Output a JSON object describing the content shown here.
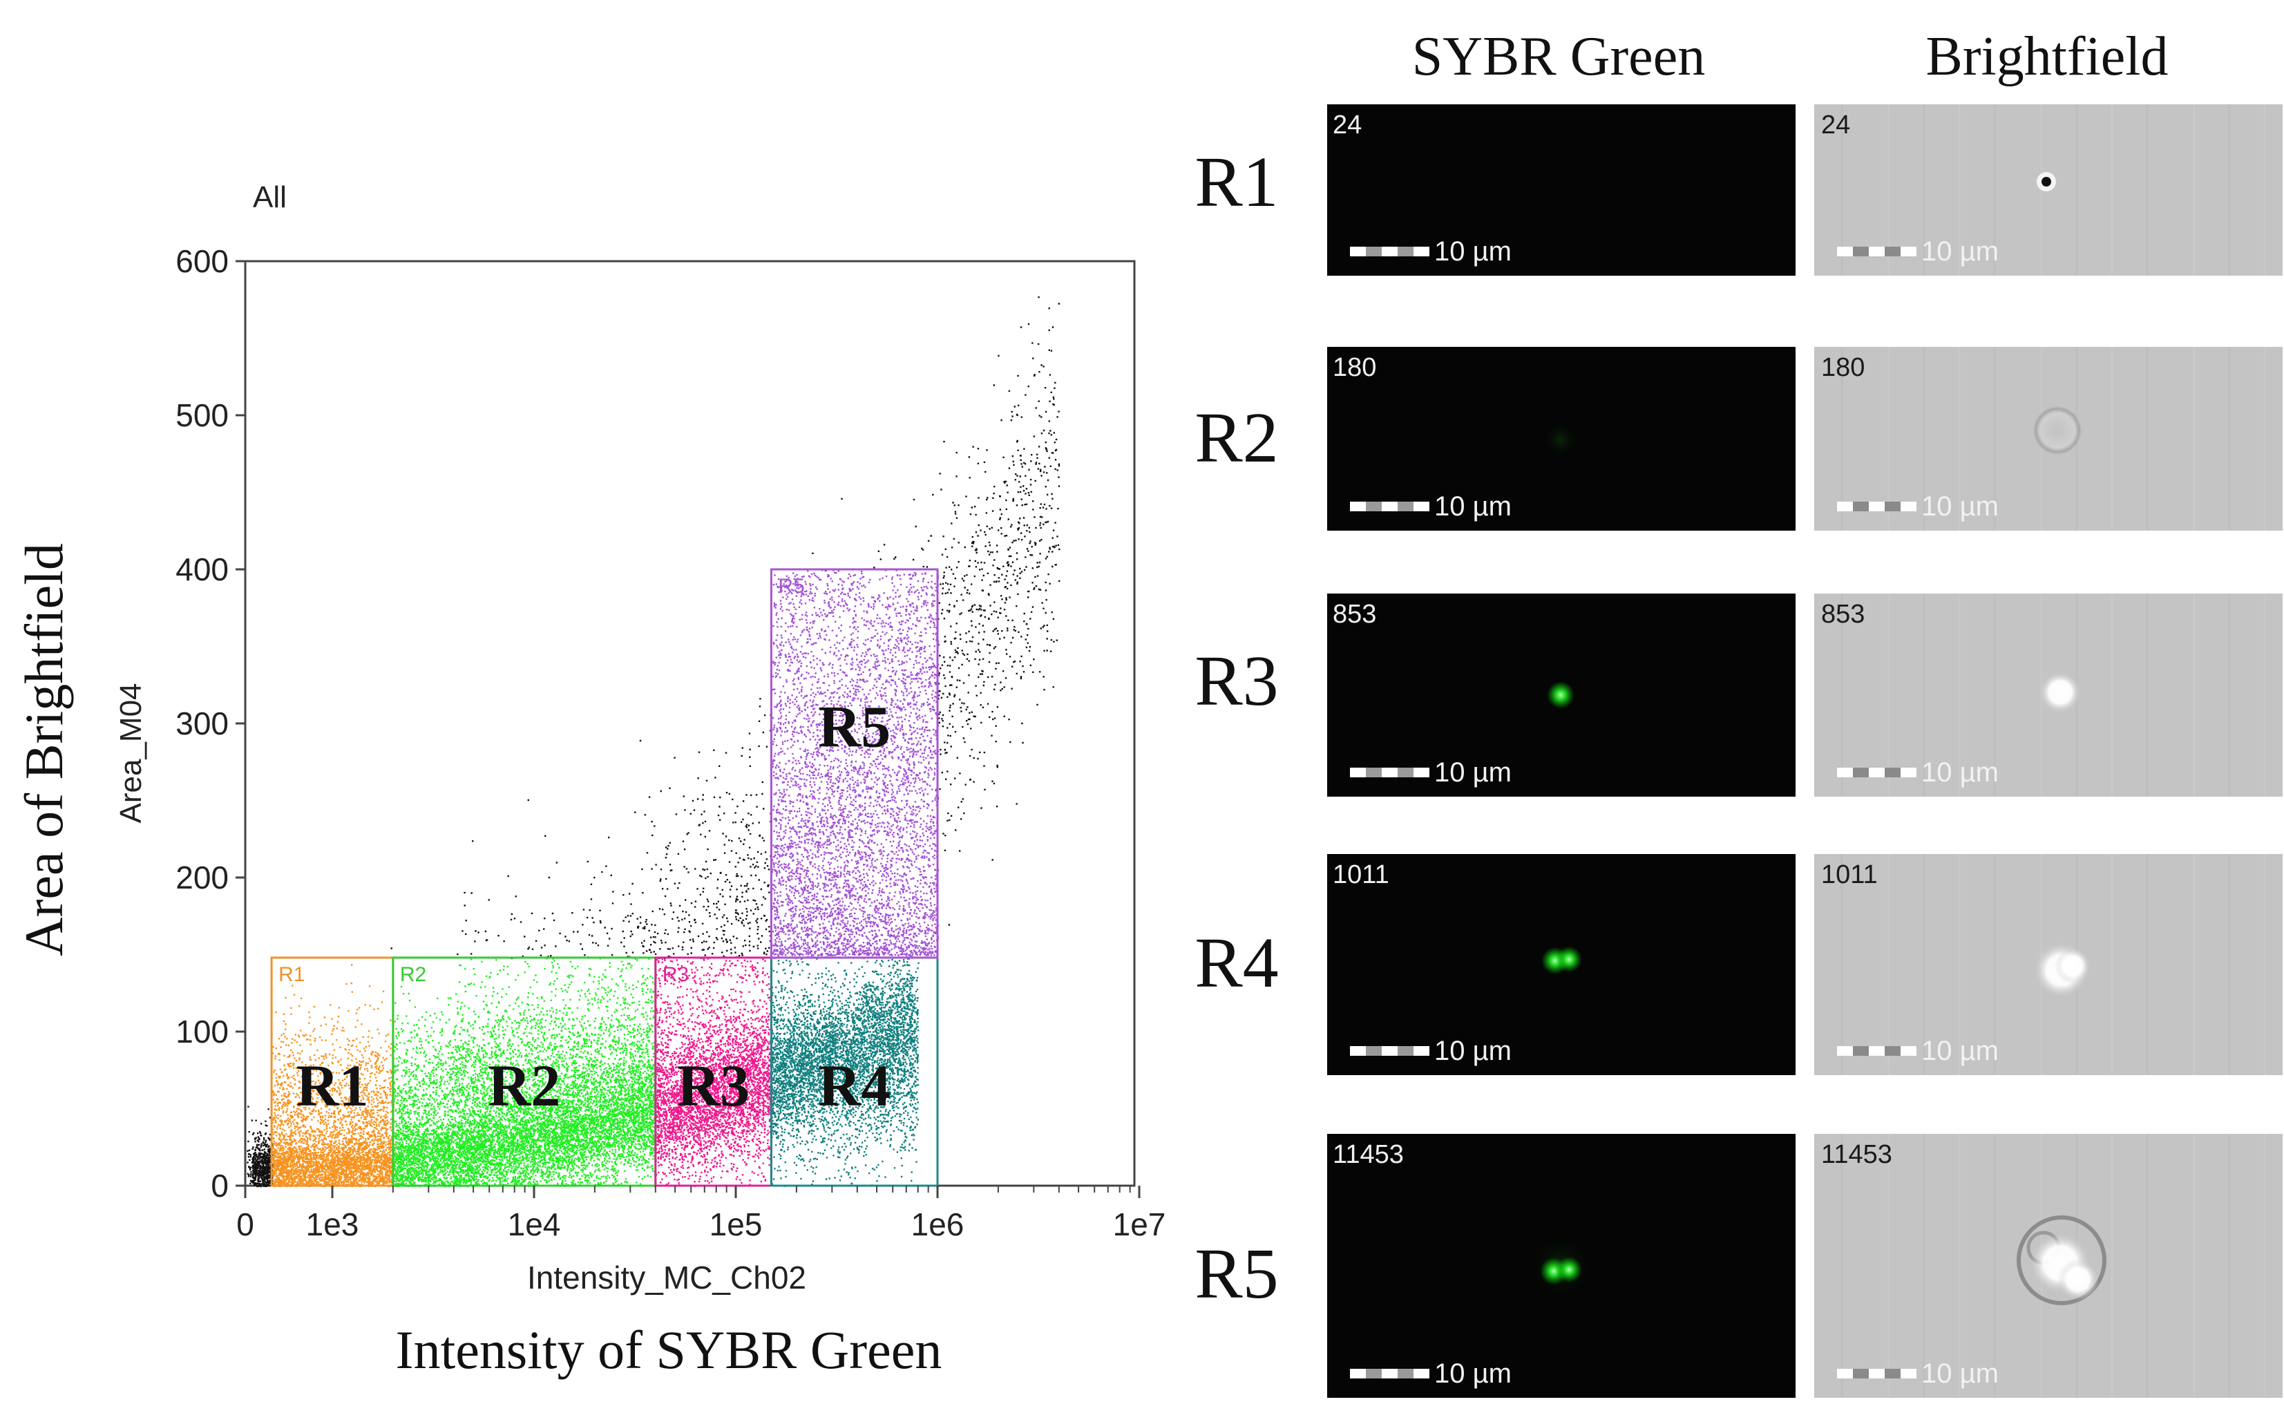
{
  "plot": {
    "gate_label": "All",
    "ylabel_inner": "Area_M04",
    "xlabel_inner": "Intensity_MC_Ch02",
    "ylabel_outer": "Area of Brightfield",
    "xlabel_outer": "Intensity of SYBR Green"
  },
  "chart_data": {
    "type": "scatter",
    "x_scale": "log",
    "xlim": [
      0,
      10000000
    ],
    "ylim": [
      0,
      600
    ],
    "x_ticks": [
      {
        "value": 0,
        "label": "0"
      },
      {
        "value": 1000,
        "label": "1e3"
      },
      {
        "value": 10000,
        "label": "1e4"
      },
      {
        "value": 100000,
        "label": "1e5"
      },
      {
        "value": 1000000,
        "label": "1e6"
      },
      {
        "value": 10000000,
        "label": "1e7"
      }
    ],
    "y_ticks": [
      {
        "value": 0,
        "label": "0"
      },
      {
        "value": 100,
        "label": "100"
      },
      {
        "value": 200,
        "label": "200"
      },
      {
        "value": 300,
        "label": "300"
      },
      {
        "value": 400,
        "label": "400"
      },
      {
        "value": 500,
        "label": "500"
      },
      {
        "value": 600,
        "label": "600"
      }
    ],
    "regions": [
      {
        "id": "R1",
        "small_label": "R1",
        "big_label": "R1",
        "color": "#f0922a",
        "point_color": "#f7931e",
        "x_range": [
          500,
          2000
        ],
        "y_range": [
          0,
          148
        ]
      },
      {
        "id": "R2",
        "small_label": "R2",
        "big_label": "R2",
        "color": "#33cc33",
        "point_color": "#22ee22",
        "x_range": [
          2000,
          40000
        ],
        "y_range": [
          0,
          148
        ]
      },
      {
        "id": "R3",
        "small_label": "R3",
        "big_label": "R3",
        "color": "#dd2299",
        "point_color": "#f0168c",
        "x_range": [
          40000,
          150000
        ],
        "y_range": [
          0,
          148
        ]
      },
      {
        "id": "R4",
        "small_label": "",
        "big_label": "R4",
        "color": "#1b8a8a",
        "point_color": "#0e7f7f",
        "x_range": [
          150000,
          1000000
        ],
        "y_range": [
          0,
          148
        ]
      },
      {
        "id": "R5",
        "small_label": "R5",
        "big_label": "R5",
        "color": "#a855d0",
        "point_color": "#a24fd6",
        "x_range": [
          150000,
          1000000
        ],
        "y_range": [
          148,
          400
        ]
      }
    ],
    "ungated_point_color": "#111111"
  },
  "gallery": {
    "column_headers": [
      "SYBR Green",
      "Brightfield"
    ],
    "scale_label": "10 µm",
    "rows": [
      {
        "label": "R1",
        "object_id": "24",
        "green_spot": "none",
        "bf_spot": "dark-dot"
      },
      {
        "label": "R2",
        "object_id": "180",
        "green_spot": "faint",
        "bf_spot": "ring"
      },
      {
        "label": "R3",
        "object_id": "853",
        "green_spot": "single",
        "bf_spot": "bright"
      },
      {
        "label": "R4",
        "object_id": "1011",
        "green_spot": "double",
        "bf_spot": "bright-large"
      },
      {
        "label": "R5",
        "object_id": "11453",
        "green_spot": "double-soft",
        "bf_spot": "cluster"
      }
    ]
  }
}
